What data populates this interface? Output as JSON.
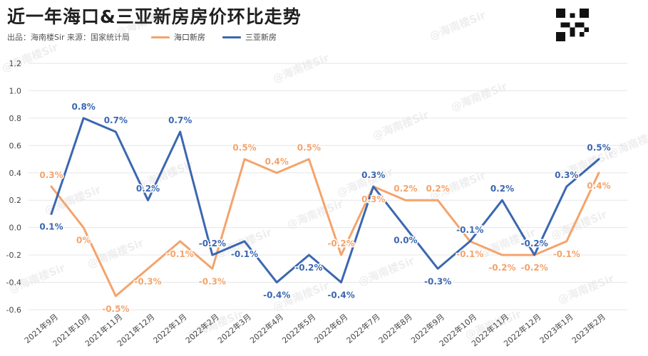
{
  "header": {
    "title": "近一年海口&三亚新房房价环比走势",
    "source": "出品：海南楼Sir  来源：国家统计局"
  },
  "watermark": "@海南楼Sir",
  "colors": {
    "haikou": "#f4a36c",
    "sanya": "#3b67b0",
    "grid": "#e6e6e6",
    "axis_text": "#444444"
  },
  "chart_data": {
    "type": "line",
    "title": "近一年海口&三亚新房房价环比走势",
    "categories": [
      "2021年9月",
      "2021年10月",
      "2021年11月",
      "2021年12月",
      "2022年1月",
      "2022年2月",
      "2022年3月",
      "2022年4月",
      "2022年5月",
      "2022年6月",
      "2022年7月",
      "2022年8月",
      "2022年9月",
      "2022年10月",
      "2022年11月",
      "2022年12月",
      "2023年1月",
      "2023年2月"
    ],
    "ylim": [
      -0.6,
      1.2
    ],
    "yticks": [
      "-0.6",
      "-0.4",
      "-0.2",
      "0.0",
      "0.2",
      "0.4",
      "0.6",
      "0.8",
      "1.0",
      "1.2"
    ],
    "grid": true,
    "legend_position": "top",
    "series": [
      {
        "name": "海口新房",
        "color": "#f4a36c",
        "values": [
          0.3,
          0.0,
          -0.5,
          -0.3,
          -0.1,
          -0.3,
          0.5,
          0.4,
          0.5,
          -0.2,
          0.3,
          0.2,
          0.2,
          -0.1,
          -0.2,
          -0.2,
          -0.1,
          0.4
        ],
        "labels": [
          "0.3%",
          "0%",
          "-0.5%",
          "-0.3%",
          "-0.1%",
          "-0.3%",
          "0.5%",
          "0.4%",
          "0.5%",
          "-0.2%",
          "0.3%",
          "0.2%",
          "0.2%",
          "-0.1%",
          "-0.2%",
          "-0.2%",
          "-0.1%",
          "0.4%"
        ]
      },
      {
        "name": "三亚新房",
        "color": "#3b67b0",
        "values": [
          0.1,
          0.8,
          0.7,
          0.2,
          0.7,
          -0.2,
          -0.1,
          -0.4,
          -0.2,
          -0.4,
          0.3,
          0.0,
          -0.3,
          -0.1,
          0.2,
          -0.2,
          0.3,
          0.5
        ],
        "labels": [
          "0.1%",
          "0.8%",
          "0.7%",
          "0.2%",
          "0.7%",
          "-0.2%",
          "-0.1%",
          "-0.4%",
          "-0.2%",
          "-0.4%",
          "0.3%",
          "0.0%",
          "-0.3%",
          "-0.1%",
          "0.2%",
          "-0.2%",
          "0.3%",
          "0.5%"
        ]
      }
    ]
  }
}
